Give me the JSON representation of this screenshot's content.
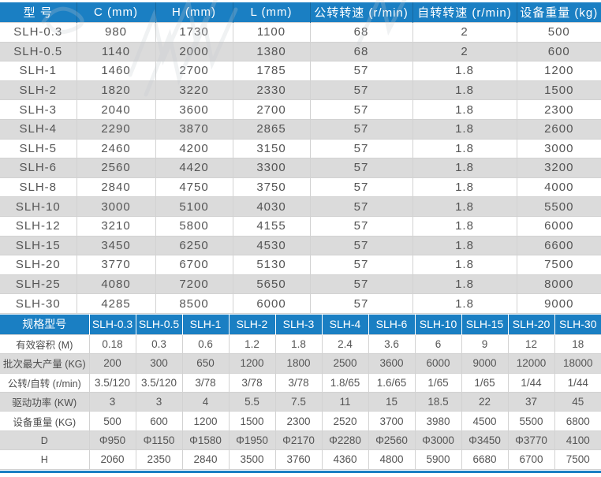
{
  "colors": {
    "header_blue": "#1a7fc3",
    "stripe_gray": "#dbdbdb",
    "cell_border": "#d2d2d2",
    "body_text": "#555555",
    "bottom_bar_blue": "#1a7fc3"
  },
  "table1": {
    "headers": [
      "型 号",
      "C (mm)",
      "H (mm)",
      "L (mm)",
      "公转转速 (r/min)",
      "自转转速 (r/min)",
      "设备重量 (kg)"
    ],
    "rows": [
      {
        "model": "SLH-0.3",
        "values": [
          "980",
          "1730",
          "1100",
          "68",
          "2",
          "500"
        ]
      },
      {
        "model": "SLH-0.5",
        "values": [
          "1140",
          "2000",
          "1380",
          "68",
          "2",
          "600"
        ]
      },
      {
        "model": "SLH-1",
        "values": [
          "1460",
          "2700",
          "1785",
          "57",
          "1.8",
          "1200"
        ]
      },
      {
        "model": "SLH-2",
        "values": [
          "1820",
          "3220",
          "2330",
          "57",
          "1.8",
          "1500"
        ]
      },
      {
        "model": "SLH-3",
        "values": [
          "2040",
          "3600",
          "2700",
          "57",
          "1.8",
          "2300"
        ]
      },
      {
        "model": "SLH-4",
        "values": [
          "2290",
          "3870",
          "2865",
          "57",
          "1.8",
          "2600"
        ]
      },
      {
        "model": "SLH-5",
        "values": [
          "2460",
          "4200",
          "3150",
          "57",
          "1.8",
          "3000"
        ]
      },
      {
        "model": "SLH-6",
        "values": [
          "2560",
          "4420",
          "3300",
          "57",
          "1.8",
          "3200"
        ]
      },
      {
        "model": "SLH-8",
        "values": [
          "2840",
          "4750",
          "3750",
          "57",
          "1.8",
          "4000"
        ]
      },
      {
        "model": "SLH-10",
        "values": [
          "3000",
          "5100",
          "4030",
          "57",
          "1.8",
          "5500"
        ]
      },
      {
        "model": "SLH-12",
        "values": [
          "3210",
          "5800",
          "4155",
          "57",
          "1.8",
          "6000"
        ]
      },
      {
        "model": "SLH-15",
        "values": [
          "3450",
          "6250",
          "4530",
          "57",
          "1.8",
          "6600"
        ]
      },
      {
        "model": "SLH-20",
        "values": [
          "3770",
          "6700",
          "5130",
          "57",
          "1.8",
          "7500"
        ]
      },
      {
        "model": "SLH-25",
        "values": [
          "4080",
          "7200",
          "5650",
          "57",
          "1.8",
          "8000"
        ]
      },
      {
        "model": "SLH-30",
        "values": [
          "4285",
          "8500",
          "6000",
          "57",
          "1.8",
          "9000"
        ]
      }
    ]
  },
  "table2": {
    "headers": [
      "规格型号",
      "SLH-0.3",
      "SLH-0.5",
      "SLH-1",
      "SLH-2",
      "SLH-3",
      "SLH-4",
      "SLH-6",
      "SLH-10",
      "SLH-15",
      "SLH-20",
      "SLH-30"
    ],
    "rows": [
      {
        "label": "有效容积 (M)",
        "values": [
          "0.18",
          "0.3",
          "0.6",
          "1.2",
          "1.8",
          "2.4",
          "3.6",
          "6",
          "9",
          "12",
          "18"
        ]
      },
      {
        "label": "批次最大产量 (KG)",
        "values": [
          "200",
          "300",
          "650",
          "1200",
          "1800",
          "2500",
          "3600",
          "6000",
          "9000",
          "12000",
          "18000"
        ]
      },
      {
        "label": "公转/自转 (r/min)",
        "values": [
          "3.5/120",
          "3.5/120",
          "3/78",
          "3/78",
          "3/78",
          "1.8/65",
          "1.6/65",
          "1/65",
          "1/65",
          "1/44",
          "1/44"
        ]
      },
      {
        "label": "驱动功率 (KW)",
        "values": [
          "3",
          "3",
          "4",
          "5.5",
          "7.5",
          "11",
          "15",
          "18.5",
          "22",
          "37",
          "45"
        ]
      },
      {
        "label": "设备重量 (KG)",
        "values": [
          "500",
          "600",
          "1200",
          "1500",
          "2300",
          "2520",
          "3700",
          "3980",
          "4500",
          "5500",
          "6800"
        ]
      },
      {
        "label": "D",
        "values": [
          "Φ950",
          "Φ1150",
          "Φ1580",
          "Φ1950",
          "Φ2170",
          "Φ2280",
          "Φ2560",
          "Φ3000",
          "Φ3450",
          "Φ3770",
          "4100"
        ]
      },
      {
        "label": "H",
        "values": [
          "2060",
          "2350",
          "2840",
          "3500",
          "3760",
          "4360",
          "4800",
          "5900",
          "6680",
          "6700",
          "7500"
        ]
      }
    ]
  }
}
